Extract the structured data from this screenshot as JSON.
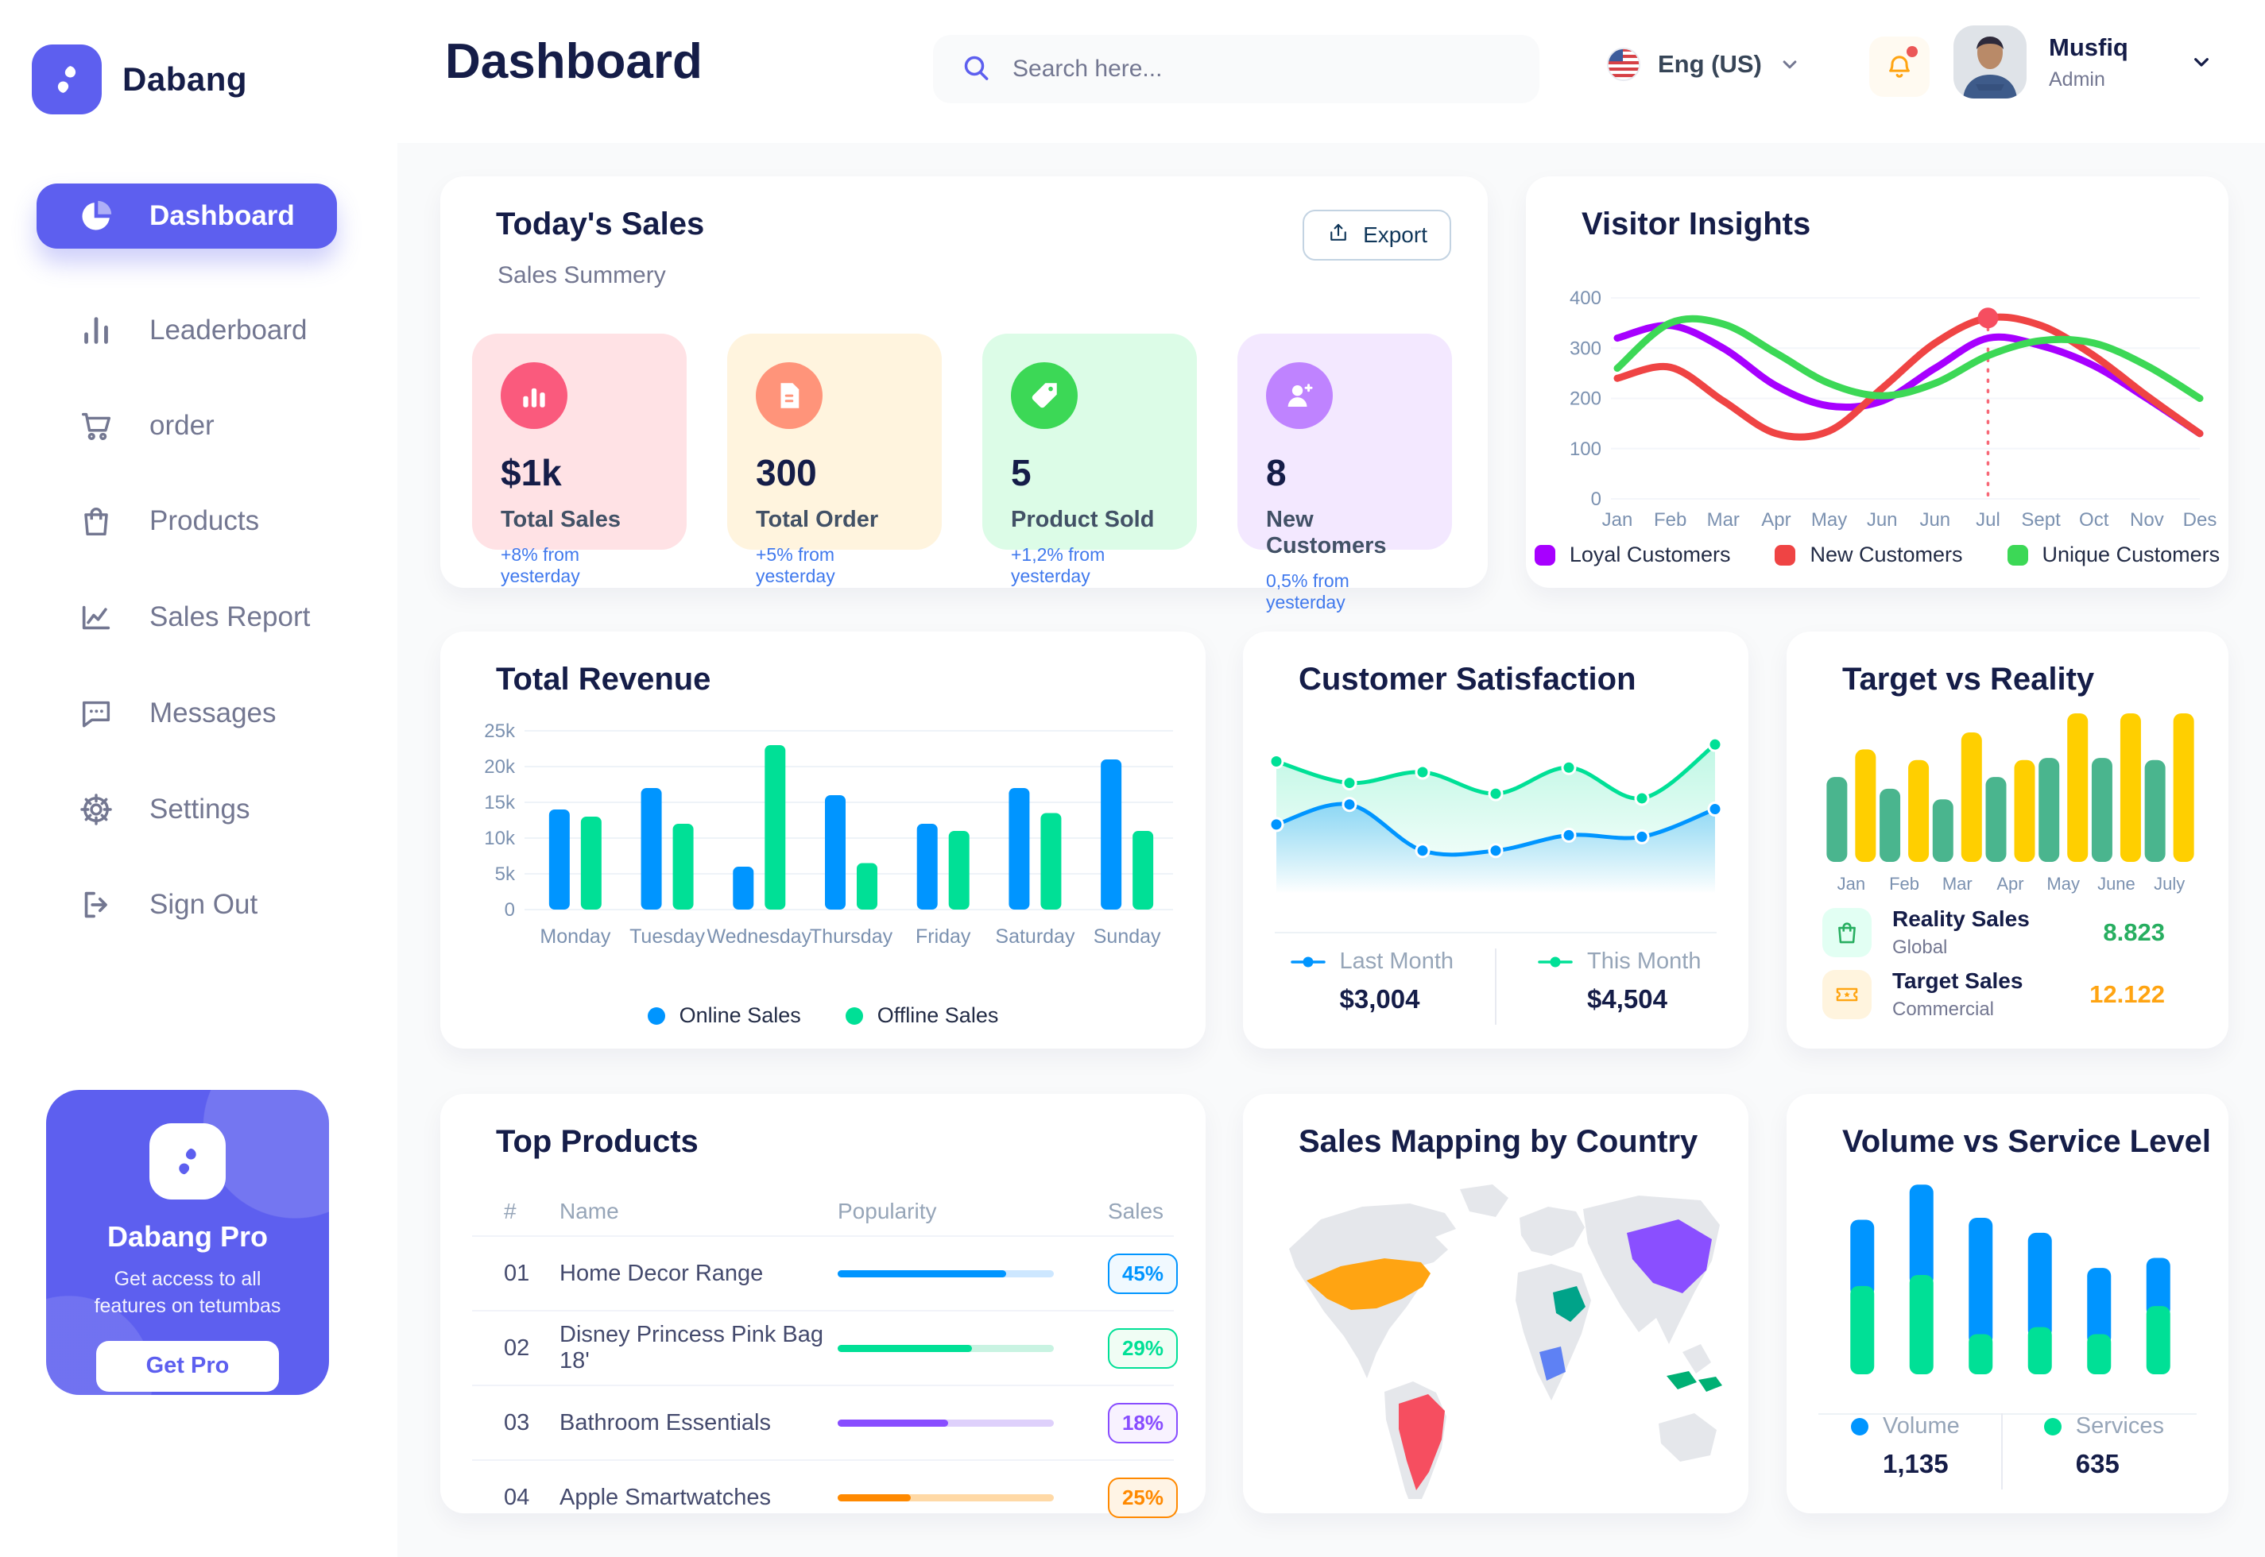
{
  "brand": {
    "name": "Dabang"
  },
  "page": {
    "title": "Dashboard"
  },
  "header": {
    "search": {
      "placeholder": "Search here...",
      "icon": "search-icon"
    },
    "language": {
      "label": "Eng (US)",
      "icon": "us-flag-icon"
    },
    "notifications": {
      "icon": "bell-icon",
      "has_unread": true
    },
    "user": {
      "name": "Musfiq",
      "role": "Admin"
    }
  },
  "sidebar": {
    "items": [
      {
        "label": "Dashboard",
        "icon": "pie-chart-icon",
        "active": true
      },
      {
        "label": "Leaderboard",
        "icon": "bar-chart-icon",
        "active": false
      },
      {
        "label": "order",
        "icon": "cart-icon",
        "active": false
      },
      {
        "label": "Products",
        "icon": "bag-icon",
        "active": false
      },
      {
        "label": "Sales Report",
        "icon": "line-chart-icon",
        "active": false
      },
      {
        "label": "Messages",
        "icon": "message-icon",
        "active": false
      },
      {
        "label": "Settings",
        "icon": "gear-icon",
        "active": false
      },
      {
        "label": "Sign Out",
        "icon": "sign-out-icon",
        "active": false
      }
    ],
    "pro_card": {
      "icon": "dabang-pro-logo-icon",
      "title": "Dabang Pro",
      "description": "Get access to all features on tetumbas",
      "button_label": "Get Pro"
    }
  },
  "today_sales": {
    "title": "Today's Sales",
    "subtitle": "Sales Summery",
    "export_label": "Export",
    "delta_color": "#4079ED",
    "cards": [
      {
        "value": "$1k",
        "label": "Total Sales",
        "delta": "+8% from yesterday",
        "bg": "#FFE2E5",
        "icon_bg": "#FA5A7D",
        "icon": "sales-chart-icon"
      },
      {
        "value": "300",
        "label": "Total Order",
        "delta": "+5% from yesterday",
        "bg": "#FFF4DE",
        "icon_bg": "#FF947A",
        "icon": "order-file-icon"
      },
      {
        "value": "5",
        "label": "Product Sold",
        "delta": "+1,2% from yesterday",
        "bg": "#DCFCE7",
        "icon_bg": "#3CD856",
        "icon": "tag-icon"
      },
      {
        "value": "8",
        "label": "New Customers",
        "delta": "0,5% from yesterday",
        "bg": "#F3E8FF",
        "icon_bg": "#BF83FF",
        "icon": "new-customer-icon"
      }
    ]
  },
  "chart_data": [
    {
      "id": "visitor_insights",
      "type": "line",
      "title": "Visitor Insights",
      "x": [
        "Jan",
        "Feb",
        "Mar",
        "Apr",
        "May",
        "Jun",
        "Jun",
        "Jul",
        "Sept",
        "Oct",
        "Nov",
        "Des"
      ],
      "ylim": [
        0,
        400
      ],
      "yticks": [
        0,
        100,
        200,
        300,
        400
      ],
      "grid": true,
      "legend_position": "bottom",
      "series": [
        {
          "name": "Loyal Customers",
          "color": "#A700FF",
          "values": [
            320,
            345,
            300,
            225,
            185,
            195,
            260,
            320,
            305,
            265,
            200,
            130
          ]
        },
        {
          "name": "New Customers",
          "color": "#EF4444",
          "values": [
            240,
            262,
            195,
            130,
            135,
            220,
            310,
            360,
            345,
            285,
            205,
            130
          ]
        },
        {
          "name": "Unique Customers",
          "color": "#3CD856",
          "values": [
            260,
            350,
            348,
            290,
            230,
            205,
            230,
            285,
            315,
            310,
            265,
            200
          ]
        }
      ],
      "marker": {
        "series_index": 1,
        "x_index": 7,
        "value": 360
      }
    },
    {
      "id": "total_revenue",
      "type": "bar",
      "title": "Total Revenue",
      "categories": [
        "Monday",
        "Tuesday",
        "Wednesday",
        "Thursday",
        "Friday",
        "Saturday",
        "Sunday"
      ],
      "ylim": [
        0,
        25000
      ],
      "ytick_labels": [
        "0",
        "5k",
        "10k",
        "15k",
        "20k",
        "25k"
      ],
      "grid": true,
      "legend_position": "bottom",
      "series": [
        {
          "name": "Online Sales",
          "color": "#0095FF",
          "values": [
            14000,
            17000,
            6000,
            16000,
            12000,
            17000,
            21000
          ]
        },
        {
          "name": "Offline Sales",
          "color": "#00E096",
          "values": [
            13000,
            12000,
            23000,
            6500,
            11000,
            13500,
            11000
          ]
        }
      ]
    },
    {
      "id": "customer_satisfaction",
      "type": "area",
      "title": "Customer Satisfaction",
      "ylim": [
        0,
        110
      ],
      "grid": false,
      "legend_position": "bottom",
      "series": [
        {
          "name": "Last Month",
          "color": "#0095FF",
          "total": "$3,004",
          "values": [
            45,
            58,
            28,
            28,
            38,
            37,
            55
          ]
        },
        {
          "name": "This Month",
          "color": "#00E096",
          "total": "$4,504",
          "values": [
            86,
            72,
            79,
            65,
            82,
            62,
            97
          ]
        }
      ]
    },
    {
      "id": "target_vs_reality",
      "type": "bar",
      "title": "Target vs Reality",
      "categories": [
        "Jan",
        "Feb",
        "Mar",
        "Apr",
        "May",
        "June",
        "July"
      ],
      "ylim": [
        0,
        14
      ],
      "grid": false,
      "series": [
        {
          "name": "Reality Sales",
          "color": "#4AB58E",
          "values": [
            8,
            6.9,
            5.9,
            8,
            9.8,
            9.8,
            9.6
          ]
        },
        {
          "name": "Target Sales",
          "color": "#FFCF00",
          "values": [
            10.6,
            9.6,
            12.2,
            9.6,
            14,
            14,
            14
          ]
        }
      ],
      "legend_rows": [
        {
          "label": "Reality Sales",
          "sublabel": "Global",
          "value": "8.823",
          "value_color": "#27AE60",
          "icon": "bag-icon",
          "icon_bg": "#E2FFF3",
          "icon_color": "#27AE60"
        },
        {
          "label": "Target Sales",
          "sublabel": "Commercial",
          "value": "12.122",
          "value_color": "#FFA412",
          "icon": "ticket-icon",
          "icon_bg": "#FFF4DE",
          "icon_color": "#FFA412"
        }
      ]
    },
    {
      "id": "volume_vs_service",
      "type": "stacked-bar",
      "title": "Volume vs Service Level",
      "ylim": [
        0,
        950
      ],
      "legend_position": "bottom",
      "series": [
        {
          "name": "Volume",
          "color": "#0095FF",
          "total": "1,135",
          "values": [
            330,
            450,
            580,
            470,
            330,
            240
          ]
        },
        {
          "name": "Services",
          "color": "#00E096",
          "total": "635",
          "values": [
            440,
            495,
            200,
            235,
            200,
            340
          ]
        }
      ]
    }
  ],
  "top_products": {
    "title": "Top Products",
    "columns": [
      "#",
      "Name",
      "Popularity",
      "Sales"
    ],
    "rows": [
      {
        "rank": "01",
        "name": "Home Decor Range",
        "popularity": 78,
        "sales": "45%",
        "color": "#0095FF",
        "track": "#CDE7FF",
        "badge_bg": "#F0F9FF"
      },
      {
        "rank": "02",
        "name": "Disney Princess Pink Bag 18'",
        "popularity": 62,
        "sales": "29%",
        "color": "#00E096",
        "track": "#C9F3E2",
        "badge_bg": "#F0FDF4"
      },
      {
        "rank": "03",
        "name": "Bathroom Essentials",
        "popularity": 51,
        "sales": "18%",
        "color": "#884DFF",
        "track": "#DED0FB",
        "badge_bg": "#F8F2FF"
      },
      {
        "rank": "04",
        "name": "Apple Smartwatches",
        "popularity": 34,
        "sales": "25%",
        "color": "#FF8900",
        "track": "#FFD9A6",
        "badge_bg": "#FFF4E5"
      }
    ]
  },
  "sales_map": {
    "title": "Sales Mapping by Country",
    "base_color": "#E5E7EB",
    "highlights": [
      {
        "name": "United States",
        "color": "#FFA412"
      },
      {
        "name": "Brazil",
        "color": "#F64E60"
      },
      {
        "name": "Saudi Arabia",
        "color": "#00A389"
      },
      {
        "name": "DR Congo",
        "color": "#5E81F4"
      },
      {
        "name": "China",
        "color": "#8A4FFF"
      },
      {
        "name": "Indonesia",
        "color": "#00B074"
      }
    ]
  },
  "colors": {
    "primary": "#5D5FEF",
    "heading": "#151D48",
    "muted": "#737791",
    "axis": "#7B91B0",
    "legend_text": "#222B45"
  }
}
